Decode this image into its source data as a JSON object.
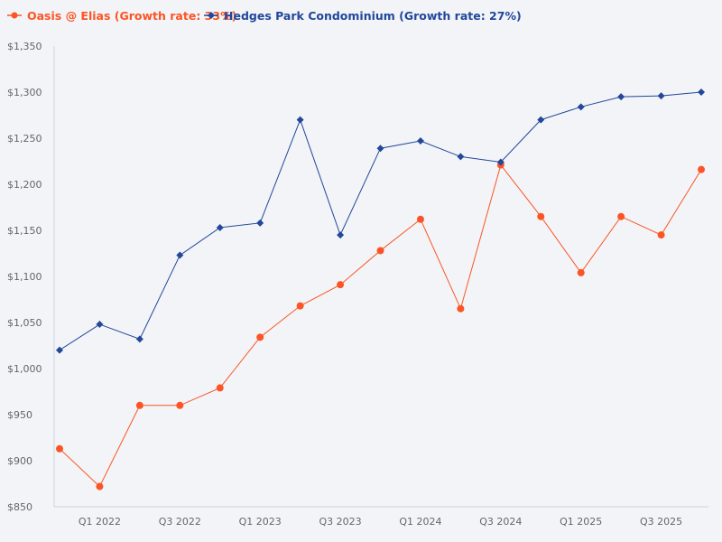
{
  "chart_data": {
    "type": "line",
    "title": "",
    "xlabel": "",
    "ylabel": "",
    "legend_position": "top-left",
    "grid": false,
    "ylim": [
      850,
      1350
    ],
    "y_ticks": [
      850,
      900,
      950,
      1000,
      1050,
      1100,
      1150,
      1200,
      1250,
      1300,
      1350
    ],
    "y_tick_labels": [
      "$850",
      "$900",
      "$950",
      "$1,000",
      "$1,050",
      "$1,100",
      "$1,150",
      "$1,200",
      "$1,250",
      "$1,300",
      "$1,350"
    ],
    "x_tick_labels": [
      "Q1 2022",
      "Q3 2022",
      "Q1 2023",
      "Q3 2023",
      "Q1 2024",
      "Q3 2024",
      "Q1 2025",
      "Q3 2025"
    ],
    "series": [
      {
        "name": "Oasis @ Elias (Growth rate: 33%)",
        "color": "#fc5424",
        "marker": "circle",
        "values": [
          913,
          872,
          960,
          960,
          979,
          1034,
          1068,
          1091,
          1128,
          1162,
          1065,
          1221,
          1165,
          1104,
          1165,
          1145,
          1216
        ]
      },
      {
        "name": "Hedges Park Condominium (Growth rate: 27%)",
        "color": "#22479b",
        "marker": "diamond",
        "values": [
          1020,
          1048,
          1032,
          1123,
          1153,
          1158,
          1270,
          1145,
          1239,
          1247,
          1230,
          1224,
          1270,
          1284,
          1295,
          1296,
          1300
        ]
      }
    ]
  }
}
